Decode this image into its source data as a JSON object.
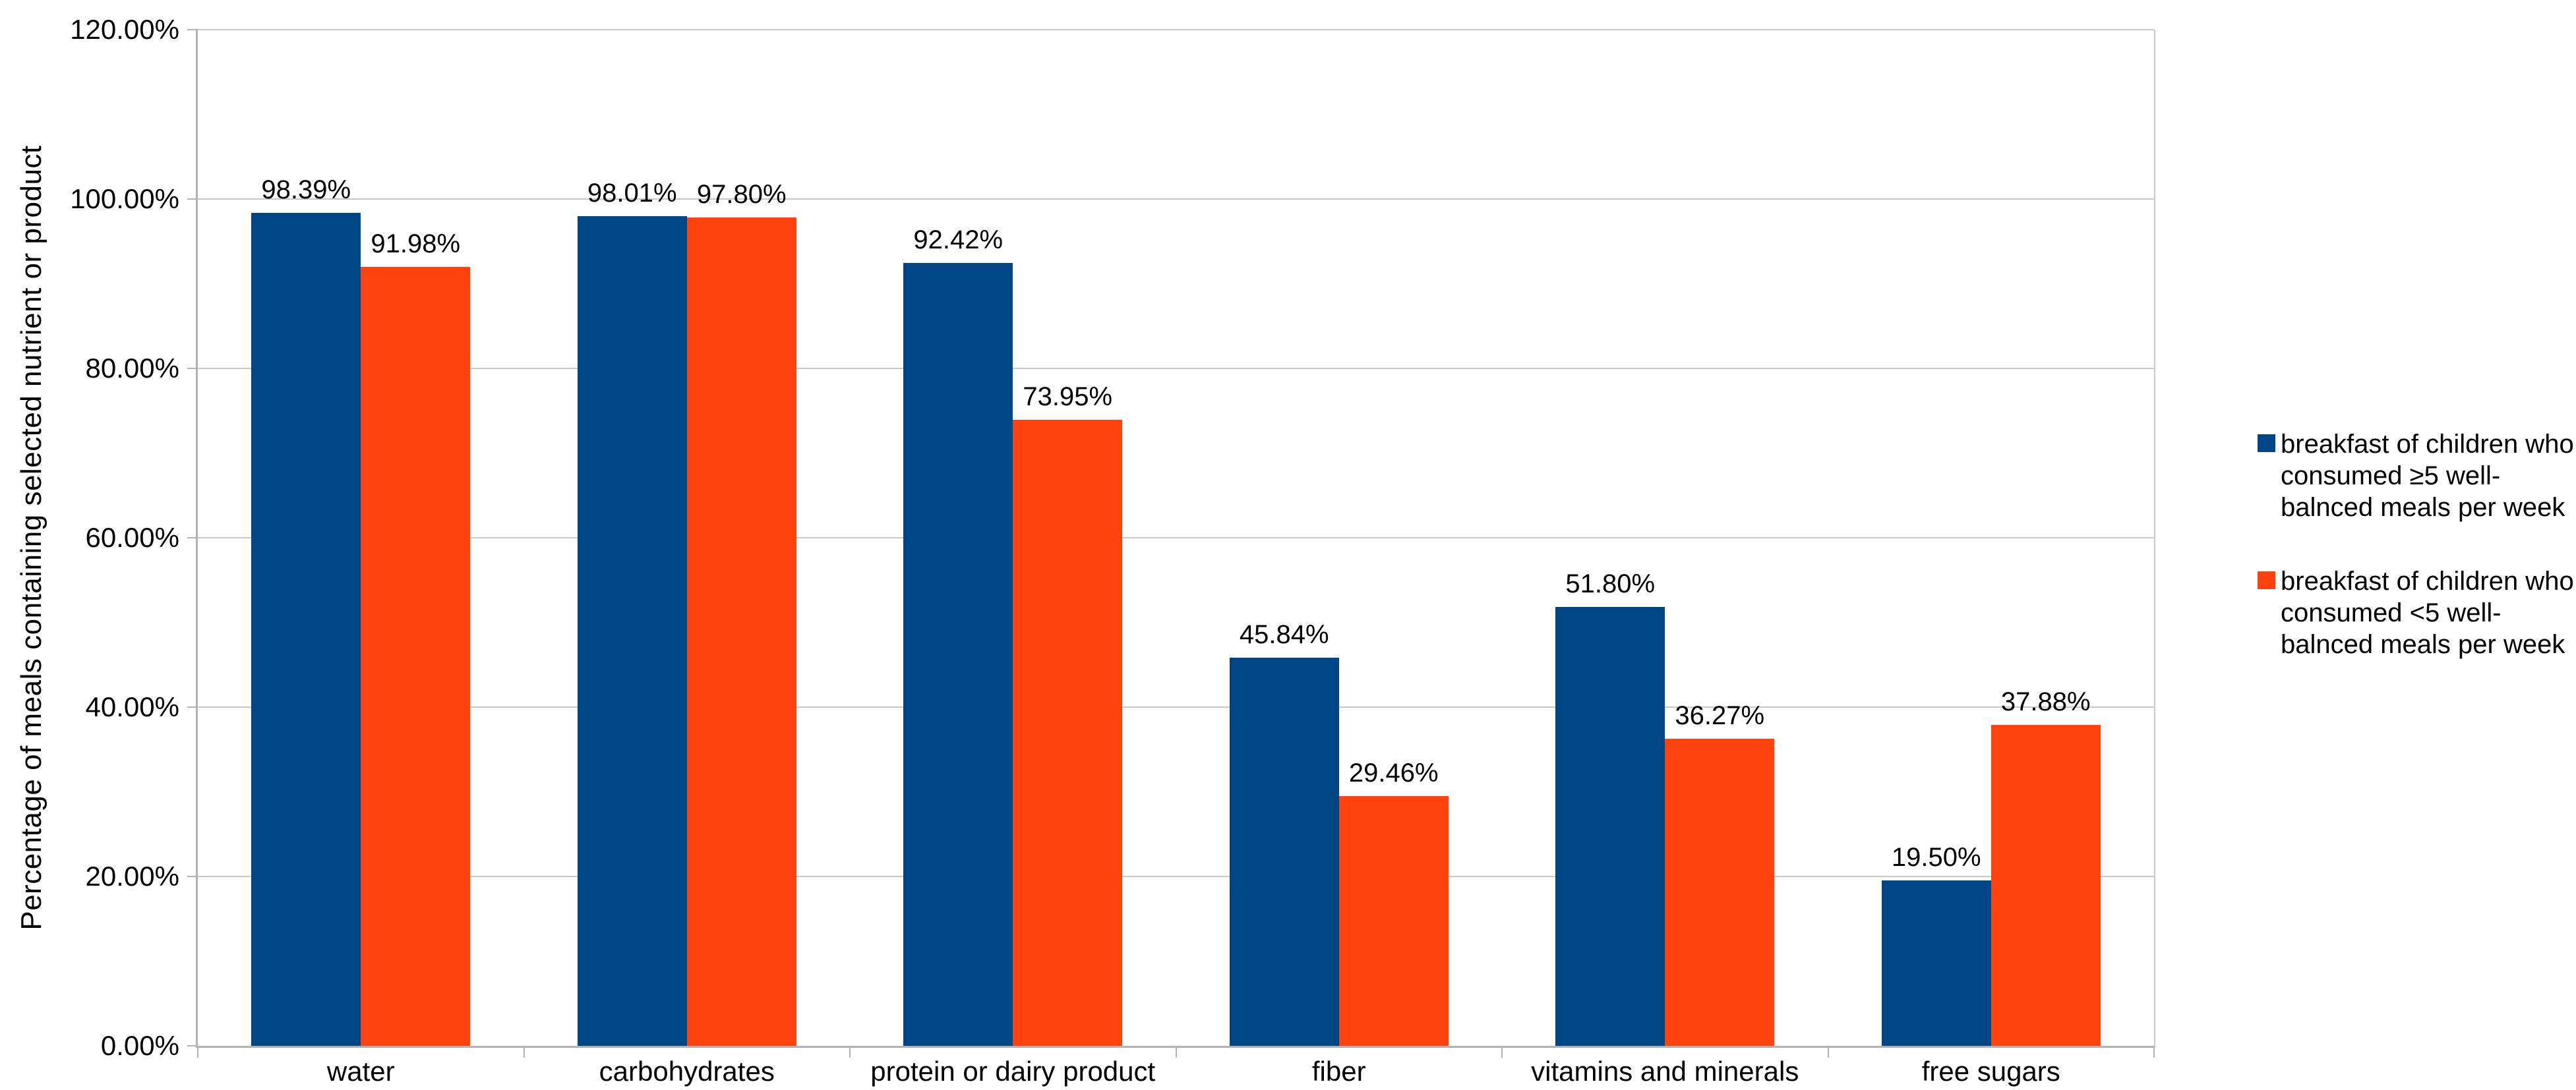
{
  "chart_data": {
    "type": "bar",
    "title": "",
    "xlabel": "",
    "ylabel": "Percentage of meals containing selected nutrient or product",
    "categories": [
      "water",
      "carbohydrates",
      "protein or dairy product",
      "fiber",
      "vitamins and minerals",
      "free sugars"
    ],
    "series": [
      {
        "name": "breakfast of children who consumed ≥5 well-balnced meals per week",
        "color": "#004586",
        "values": [
          98.39,
          98.01,
          92.42,
          45.84,
          51.8,
          19.5
        ],
        "labels": [
          "98.39%",
          "98.01%",
          "92.42%",
          "45.84%",
          "51.80%",
          "19.50%"
        ]
      },
      {
        "name": "breakfast of children who consumed <5 well-balnced meals per week",
        "color": "#ff420e",
        "values": [
          91.98,
          97.8,
          73.95,
          29.46,
          36.27,
          37.88
        ],
        "labels": [
          "91.98%",
          "97.80%",
          "73.95%",
          "29.46%",
          "36.27%",
          "37.88%"
        ]
      }
    ],
    "ylim": [
      0,
      120
    ],
    "yticks": {
      "values": [
        0,
        20,
        40,
        60,
        80,
        100,
        120
      ],
      "labels": [
        "0.00%",
        "20.00%",
        "40.00%",
        "60.00%",
        "80.00%",
        "100.00%",
        "120.00%"
      ]
    },
    "grid": true,
    "legend_position": "right"
  },
  "styles": {
    "background": "#ffffff",
    "text_color": "#000000",
    "axis_color": "#b3b3b3",
    "grid_color": "#c9c9c9",
    "series1_color": "#004586",
    "series2_color": "#ff420e"
  }
}
